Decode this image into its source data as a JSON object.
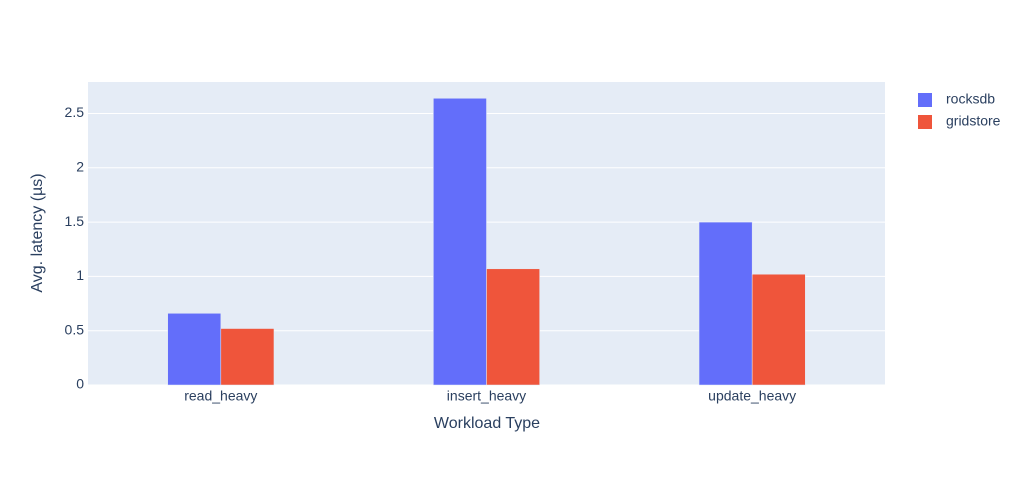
{
  "chart_data": {
    "type": "bar",
    "x_label": "Workload Type",
    "y_label": "Avg. latency (µs)",
    "categories": [
      "read_heavy",
      "insert_heavy",
      "update_heavy"
    ],
    "series": [
      {
        "name": "rocksdb",
        "color": "#636efa",
        "values": [
          0.66,
          2.64,
          1.5
        ]
      },
      {
        "name": "gridstore",
        "color": "#ef553b",
        "values": [
          0.52,
          1.07,
          1.02
        ]
      }
    ],
    "ylim": [
      0,
      2.79
    ],
    "yticks": [
      0,
      0.5,
      1,
      1.5,
      2,
      2.5
    ],
    "grid": true,
    "legend": "right"
  }
}
